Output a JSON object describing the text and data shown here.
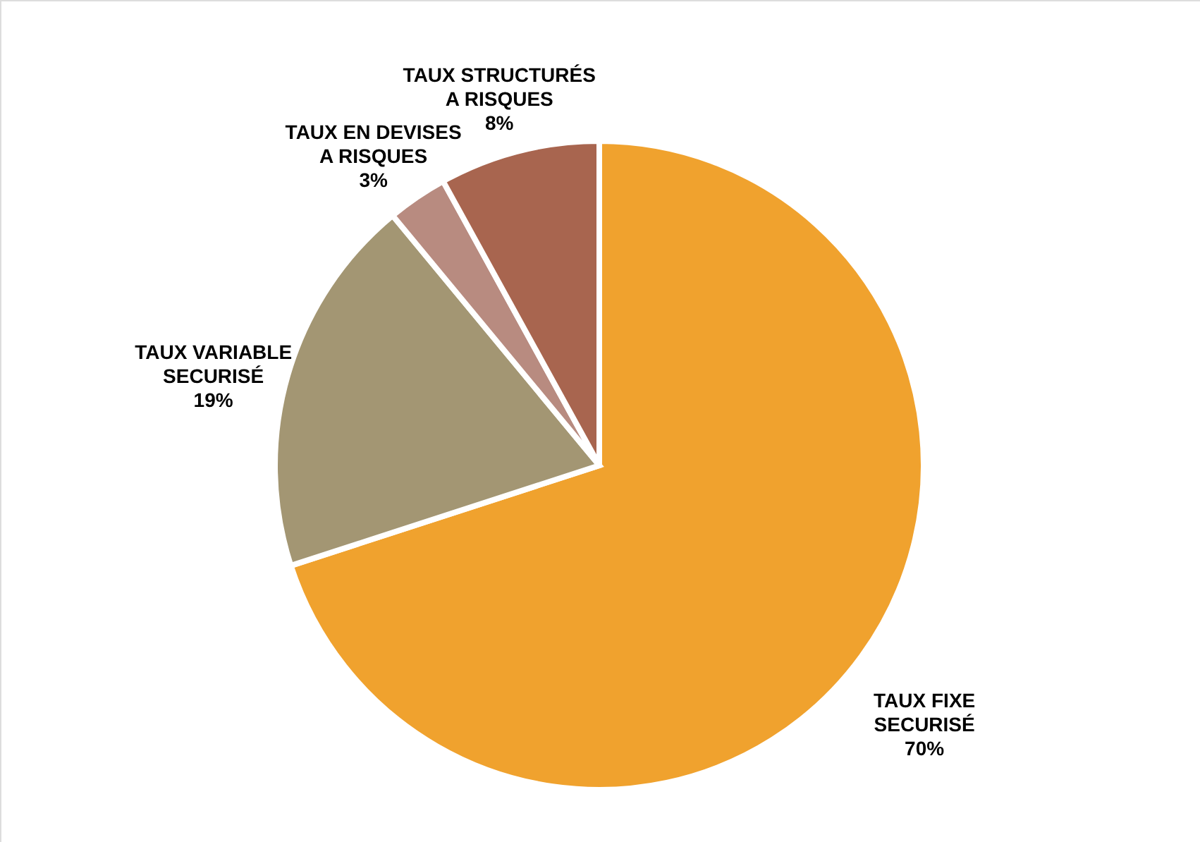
{
  "chart_data": {
    "type": "pie",
    "categories": [
      "TAUX FIXE SECURISÉ",
      "TAUX VARIABLE SECURISÉ",
      "TAUX EN DEVISES A RISQUES",
      "TAUX STRUCTURÉS A RISQUES"
    ],
    "values": [
      70,
      19,
      3,
      8
    ],
    "colors": [
      "#f0a22e",
      "#a39673",
      "#b88b80",
      "#a8654f"
    ],
    "value_labels": [
      "70%",
      "19%",
      "3%",
      "8%"
    ],
    "legend": false
  }
}
